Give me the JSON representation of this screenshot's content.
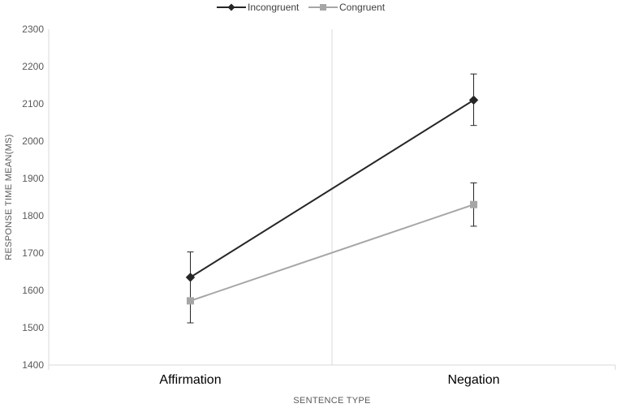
{
  "chart_data": {
    "type": "line",
    "title": "",
    "xlabel": "SENTENCE TYPE",
    "ylabel": "RESPONSE TIME MEAN(MS)",
    "categories": [
      "Affirmation",
      "Negation"
    ],
    "ylim": [
      1400,
      2300
    ],
    "yticks": [
      1400,
      1500,
      1600,
      1700,
      1800,
      1900,
      2000,
      2100,
      2200,
      2300
    ],
    "grid": false,
    "legend_position": "top-center",
    "series": [
      {
        "name": "Incongruent",
        "marker": "diamond",
        "color": "#262626",
        "values": [
          1635,
          2110
        ],
        "error_low": [
          1567,
          2042
        ],
        "error_high": [
          1703,
          2180
        ]
      },
      {
        "name": "Congruent",
        "marker": "square",
        "color": "#a6a6a6",
        "values": [
          1572,
          1830
        ],
        "error_low": [
          1513,
          1772
        ],
        "error_high": [
          1632,
          1888
        ]
      }
    ]
  }
}
